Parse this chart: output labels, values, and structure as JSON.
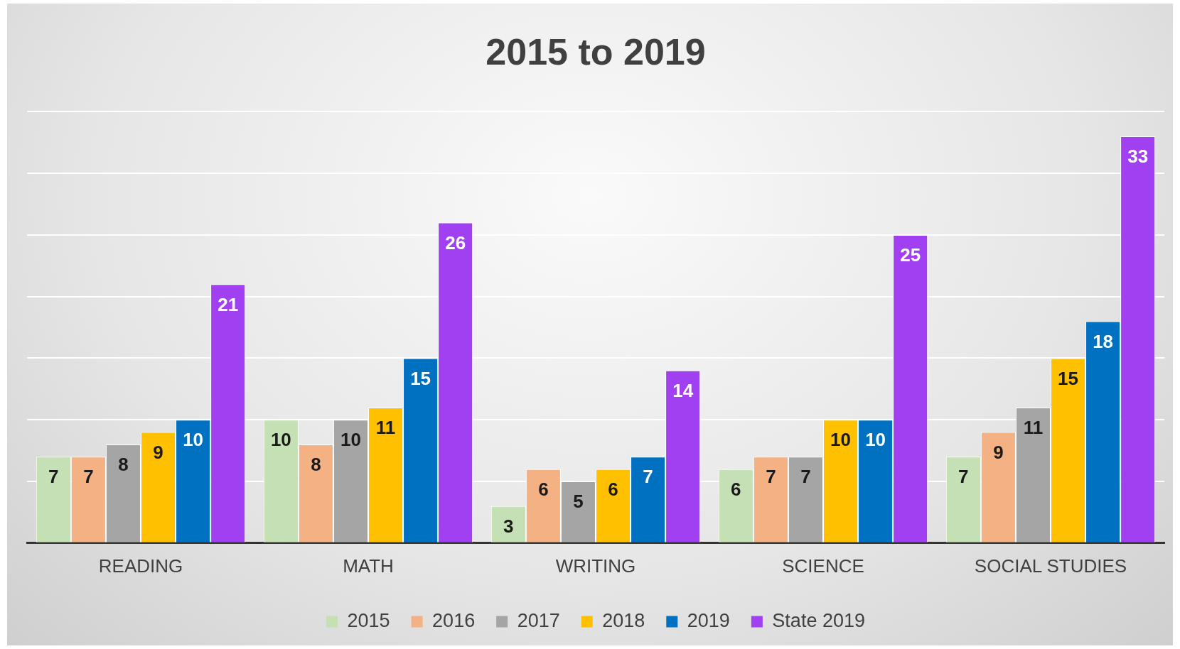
{
  "chart_data": {
    "type": "bar",
    "title": "2015 to 2019",
    "categories": [
      "READING",
      "MATH",
      "WRITING",
      "SCIENCE",
      "SOCIAL STUDIES"
    ],
    "series": [
      {
        "name": "2015",
        "color": "#c5e0b4",
        "values": [
          7,
          10,
          3,
          6,
          7
        ]
      },
      {
        "name": "2016",
        "color": "#f4b183",
        "values": [
          7,
          8,
          6,
          7,
          9
        ]
      },
      {
        "name": "2017",
        "color": "#a5a5a5",
        "values": [
          8,
          10,
          5,
          7,
          11
        ]
      },
      {
        "name": "2018",
        "color": "#ffc000",
        "values": [
          9,
          11,
          6,
          10,
          15
        ]
      },
      {
        "name": "2019",
        "color": "#0070c0",
        "values": [
          10,
          15,
          7,
          10,
          18
        ]
      },
      {
        "name": "State 2019",
        "color": "#a040f0",
        "values": [
          21,
          26,
          14,
          25,
          33
        ]
      }
    ],
    "grid": "y",
    "tick_labels": "x",
    "legend": "bottom",
    "data_labels": true
  }
}
